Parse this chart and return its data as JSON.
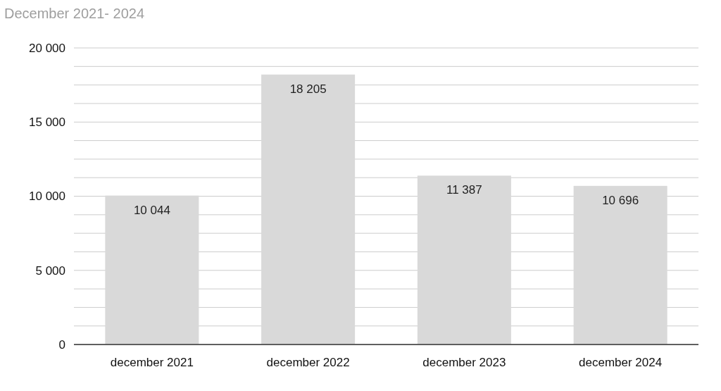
{
  "chart_data": {
    "type": "bar",
    "title": "December 2021- 2024",
    "categories": [
      "december 2021",
      "december 2022",
      "december 2023",
      "december 2024"
    ],
    "values": [
      10044,
      18205,
      11387,
      10696
    ],
    "color": "#d9d9d9",
    "value_labels": [
      "10 044",
      "18 205",
      "11 387",
      "10 696"
    ],
    "ylim": [
      0,
      20000
    ],
    "yticks": [
      {
        "value": 0,
        "label": "0"
      },
      {
        "value": 1250,
        "label": null
      },
      {
        "value": 2500,
        "label": null
      },
      {
        "value": 3750,
        "label": null
      },
      {
        "value": 5000,
        "label": "5 000"
      },
      {
        "value": 6250,
        "label": null
      },
      {
        "value": 7500,
        "label": null
      },
      {
        "value": 8750,
        "label": null
      },
      {
        "value": 10000,
        "label": "10 000"
      },
      {
        "value": 11250,
        "label": null
      },
      {
        "value": 12500,
        "label": null
      },
      {
        "value": 13750,
        "label": null
      },
      {
        "value": 15000,
        "label": "15 000"
      },
      {
        "value": 16250,
        "label": null
      },
      {
        "value": 17500,
        "label": null
      },
      {
        "value": 18750,
        "label": null
      },
      {
        "value": 20000,
        "label": "20 000"
      }
    ],
    "grid": "y"
  }
}
